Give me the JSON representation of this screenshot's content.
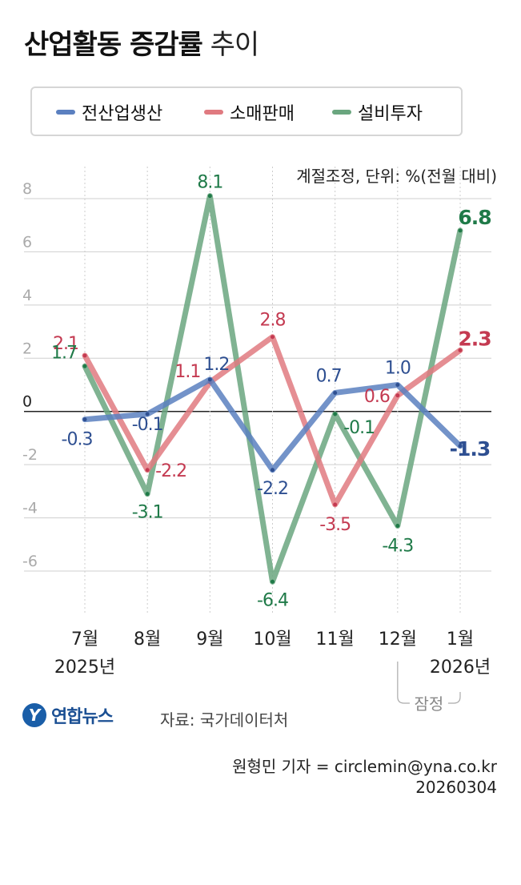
{
  "header": {
    "title_bold": "산업활동 증감률",
    "title_light": "추이",
    "unit_note": "계절조정, 단위: %(전월 대비)"
  },
  "footer": {
    "logo_text": "연합뉴스",
    "source": "자료: 국가데이터처",
    "reporter": "원형민 기자 = circlemin@yna.co.kr",
    "date": "20260304"
  },
  "chart_data": {
    "type": "line",
    "categories": [
      "7월",
      "8월",
      "9월",
      "10월",
      "11월",
      "12월",
      "1월"
    ],
    "year_labels": [
      {
        "category": "7월",
        "text": "2025년"
      },
      {
        "category": "1월",
        "text": "2026년"
      }
    ],
    "bracket_label": "잠정",
    "bracket_categories": [
      "12월",
      "1월"
    ],
    "y_ticks": [
      8,
      6,
      4,
      2,
      0,
      -2,
      -4,
      -6
    ],
    "ylim": [
      -7.5,
      9
    ],
    "grid": true,
    "legend_position": "top",
    "series": [
      {
        "name": "전산업생산",
        "color": "#5b80c0",
        "label_color": "#2e4f91",
        "values": [
          -0.3,
          -0.1,
          1.2,
          -2.2,
          0.7,
          1.0,
          -1.3
        ],
        "labels": [
          "-0.3",
          "-0.1",
          "1.2",
          "-2.2",
          "0.7",
          "1.0",
          "-1.3"
        ]
      },
      {
        "name": "소매판매",
        "color": "#e07a80",
        "label_color": "#c43a51",
        "values": [
          2.1,
          -2.2,
          1.1,
          2.8,
          -3.5,
          0.6,
          2.3
        ],
        "labels": [
          "2.1",
          "-2.2",
          "1.1",
          "2.8",
          "-3.5",
          "0.6",
          "2.3"
        ]
      },
      {
        "name": "설비투자",
        "color": "#6aa67f",
        "label_color": "#1f7a48",
        "values": [
          1.7,
          -3.1,
          8.1,
          -6.4,
          -0.1,
          -4.3,
          6.8
        ],
        "labels": [
          "1.7",
          "-3.1",
          "8.1",
          "-6.4",
          "-0.1",
          "-4.3",
          "6.8"
        ]
      }
    ]
  }
}
